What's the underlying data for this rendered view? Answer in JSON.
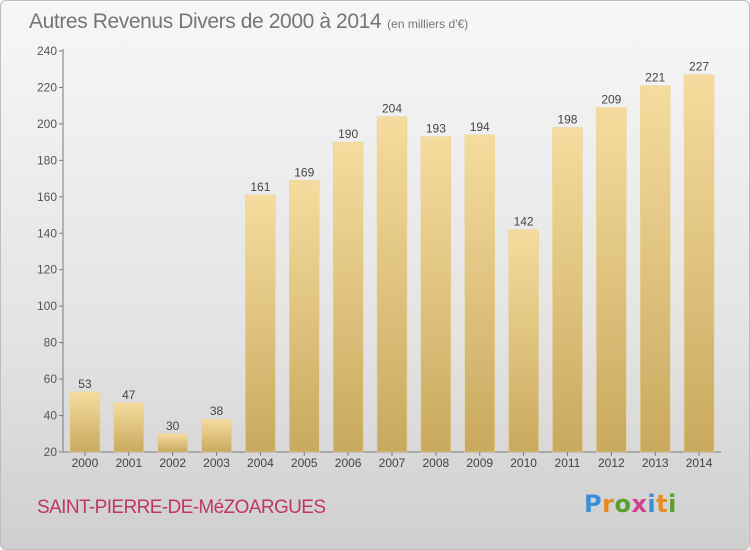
{
  "header": {
    "title": "Autres Revenus Divers de 2000 à 2014",
    "unit": "(en milliers d'€)"
  },
  "footer": {
    "commune": "SAINT-PIERRE-DE-MéZOARGUES",
    "logo_letters": [
      "P",
      "r",
      "o",
      "x",
      "i",
      "t",
      "i"
    ]
  },
  "colors": {
    "bar_light": "#f5dc9e",
    "bar_dark": "#c9a95e",
    "commune": "#c0356a"
  },
  "chart_data": {
    "type": "bar",
    "title": "Autres Revenus Divers de 2000 à 2014",
    "xlabel": "",
    "ylabel": "",
    "categories": [
      "2000",
      "2001",
      "2002",
      "2003",
      "2004",
      "2005",
      "2006",
      "2007",
      "2008",
      "2009",
      "2010",
      "2011",
      "2012",
      "2013",
      "2014"
    ],
    "values": [
      53,
      47,
      30,
      38,
      161,
      169,
      190,
      204,
      193,
      194,
      142,
      198,
      209,
      221,
      227
    ],
    "ylim": [
      20,
      240
    ],
    "yticks": [
      20,
      40,
      60,
      80,
      100,
      120,
      140,
      160,
      180,
      200,
      220,
      240
    ],
    "grid": false,
    "data_labels": true
  }
}
